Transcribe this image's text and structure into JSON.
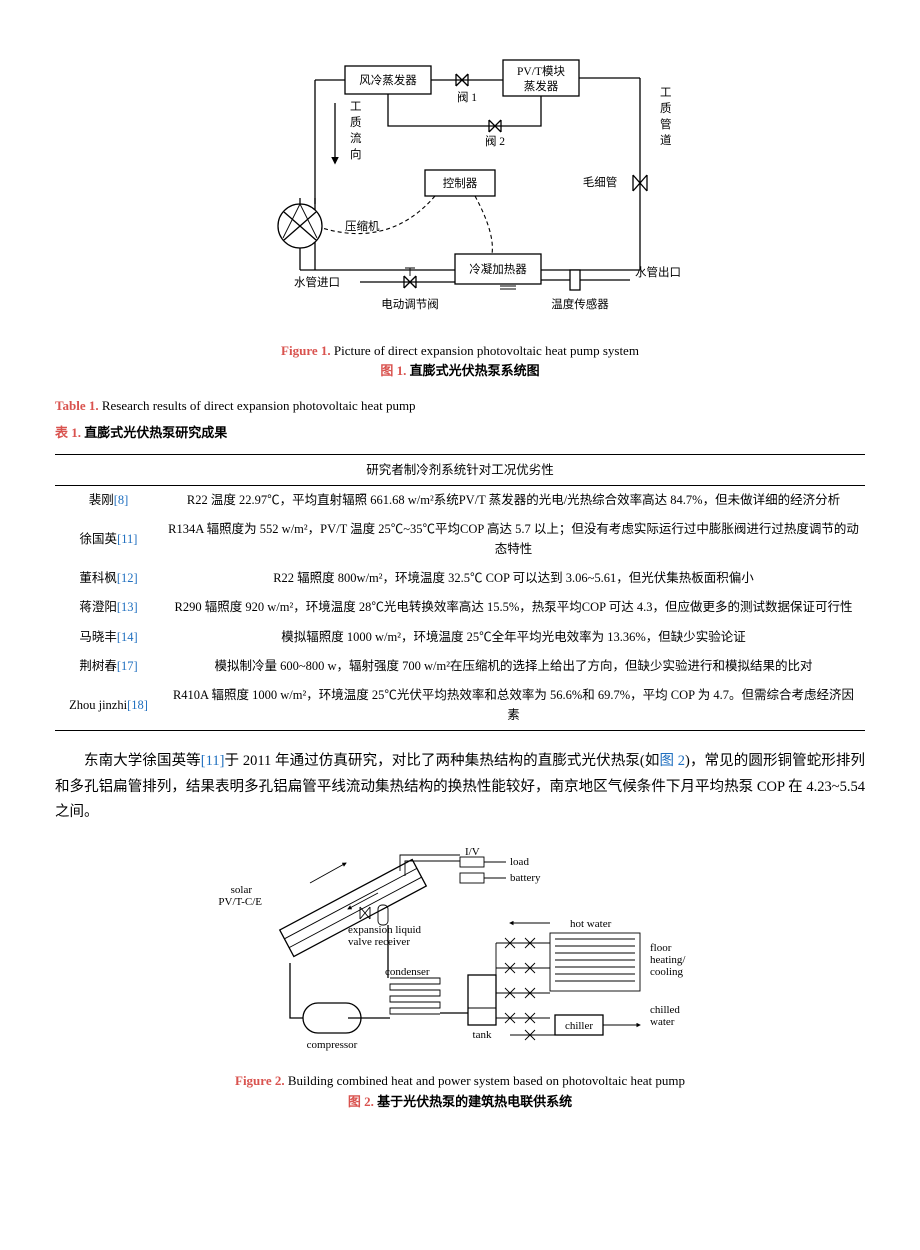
{
  "figure1": {
    "caption_en_label": "Figure 1.",
    "caption_en_text": " Picture of direct expansion photovoltaic heat pump system",
    "caption_zh_label": "图 1.",
    "caption_zh_text": " 直膨式光伏热泵系统图",
    "labels": {
      "evap_air": "风冷蒸发器",
      "evap_pvt1": "PV/T模块",
      "evap_pvt2": "蒸发器",
      "valve1": "阀 1",
      "valve2": "阀 2",
      "pipe_v1": "工",
      "pipe_v2": "质",
      "pipe_v3": "管",
      "pipe_v4": "道",
      "flow_v1": "工",
      "flow_v2": "质",
      "flow_v3": "流",
      "flow_v4": "向",
      "controller": "控制器",
      "capillary": "毛细管",
      "compressor": "压缩机",
      "cond_heater": "冷凝加热器",
      "water_in": "水管进口",
      "water_out": "水管出口",
      "valve_elec": "电动调节阀",
      "temp_sensor": "温度传感器"
    }
  },
  "table1": {
    "title_en_label": "Table 1.",
    "title_en_text": " Research results of direct expansion photovoltaic heat pump",
    "title_zh_label": "表 1.",
    "title_zh_text": " 直膨式光伏热泵研究成果",
    "header": "研究者制冷剂系统针对工况优劣性",
    "rows": [
      {
        "name": "裴刚",
        "ref": "[8]",
        "desc": "R22 温度 22.97℃，平均直射辐照 661.68 w/m²系统PV/T 蒸发器的光电/光热综合效率高达 84.7%，但未做详细的经济分析"
      },
      {
        "name": "徐国英",
        "ref": "[11]",
        "desc": "R134A 辐照度为 552 w/m²，PV/T 温度 25℃~35℃平均COP 高达 5.7 以上；但没有考虑实际运行过中膨胀阀进行过热度调节的动态特性"
      },
      {
        "name": "董科枫",
        "ref": "[12]",
        "desc": "R22 辐照度 800w/m²，环境温度 32.5℃ COP 可以达到 3.06~5.61，但光伏集热板面积偏小"
      },
      {
        "name": "蒋澄阳",
        "ref": "[13]",
        "desc": "R290 辐照度 920 w/m²，环境温度 28℃光电转换效率高达 15.5%，热泵平均COP 可达 4.3，但应做更多的测试数据保证可行性"
      },
      {
        "name": "马晓丰",
        "ref": "[14]",
        "desc": "模拟辐照度 1000 w/m²，环境温度 25℃全年平均光电效率为 13.36%，但缺少实验论证"
      },
      {
        "name": "荆树春",
        "ref": "[17]",
        "desc": "模拟制冷量 600~800 w，辐射强度 700 w/m²在压缩机的选择上给出了方向，但缺少实验进行和模拟结果的比对"
      },
      {
        "name": "Zhou jinzhi",
        "ref": "[18]",
        "desc": "R410A 辐照度 1000 w/m²，环境温度 25℃光伏平均热效率和总效率为 56.6%和 69.7%，平均 COP 为 4.7。但需综合考虑经济因素"
      }
    ]
  },
  "paragraph": {
    "p1_a": "东南大学徐国英等",
    "p1_ref": "[11]",
    "p1_b": "于 2011 年通过仿真研究，对比了两种集热结构的直膨式光伏热泵(如",
    "p1_figref": "图 2",
    "p1_c": ")，常见的圆形铜管蛇形排列和多孔铝扁管排列，结果表明多孔铝扁管平线流动集热结构的换热性能较好，南京地区气候条件下月平均热泵 COP 在 4.23~5.54 之间。"
  },
  "figure2": {
    "caption_en_label": "Figure 2.",
    "caption_en_text": " Building combined heat and power system based on photovoltaic heat pump",
    "caption_zh_label": "图 2.",
    "caption_zh_text": " 基于光伏热泵的建筑热电联供系统",
    "labels": {
      "iv": "I/V",
      "load": "load",
      "battery": "battery",
      "solar1": "solar",
      "solar2": "PV/T-C/E",
      "exp1": "expansion liquid",
      "exp2": "valve receiver",
      "condenser": "condenser",
      "compressor": "compressor",
      "tank": "tank",
      "hot": "hot water",
      "floor1": "floor",
      "floor2": "heating/",
      "floor3": "cooling",
      "chilled1": "chilled",
      "chilled2": "water",
      "chiller": "chiller"
    }
  },
  "colors": {
    "accent": "#d9534f",
    "link": "#1f6fbf"
  }
}
